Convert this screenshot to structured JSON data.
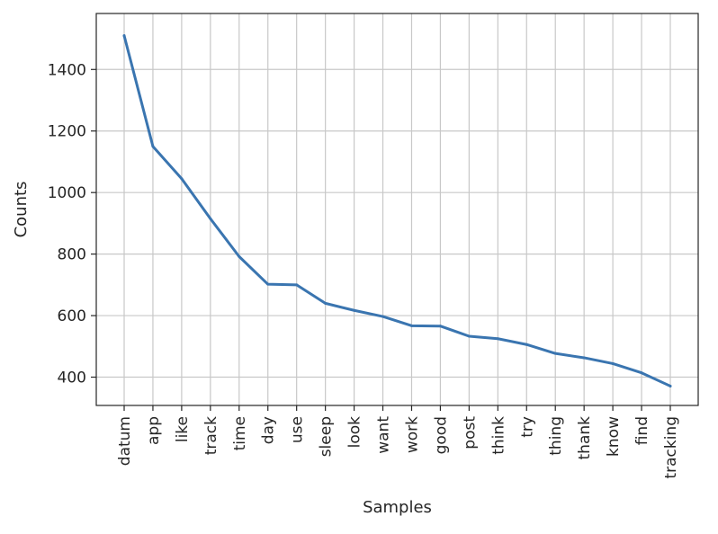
{
  "chart_data": {
    "type": "line",
    "title": "",
    "xlabel": "Samples",
    "ylabel": "Counts",
    "categories": [
      "datum",
      "app",
      "like",
      "track",
      "time",
      "day",
      "use",
      "sleep",
      "look",
      "want",
      "work",
      "good",
      "post",
      "think",
      "try",
      "thing",
      "thank",
      "know",
      "find",
      "tracking"
    ],
    "series": [
      {
        "values": [
          1510,
          1150,
          1045,
          915,
          792,
          702,
          700,
          640,
          617,
          597,
          567,
          566,
          533,
          525,
          506,
          477,
          463,
          444,
          414,
          371
        ]
      }
    ],
    "ylim": [
      308,
      1582
    ],
    "yticks": [
      400,
      600,
      800,
      1000,
      1200,
      1400
    ],
    "grid": true,
    "line_color": "#3a75b0"
  }
}
